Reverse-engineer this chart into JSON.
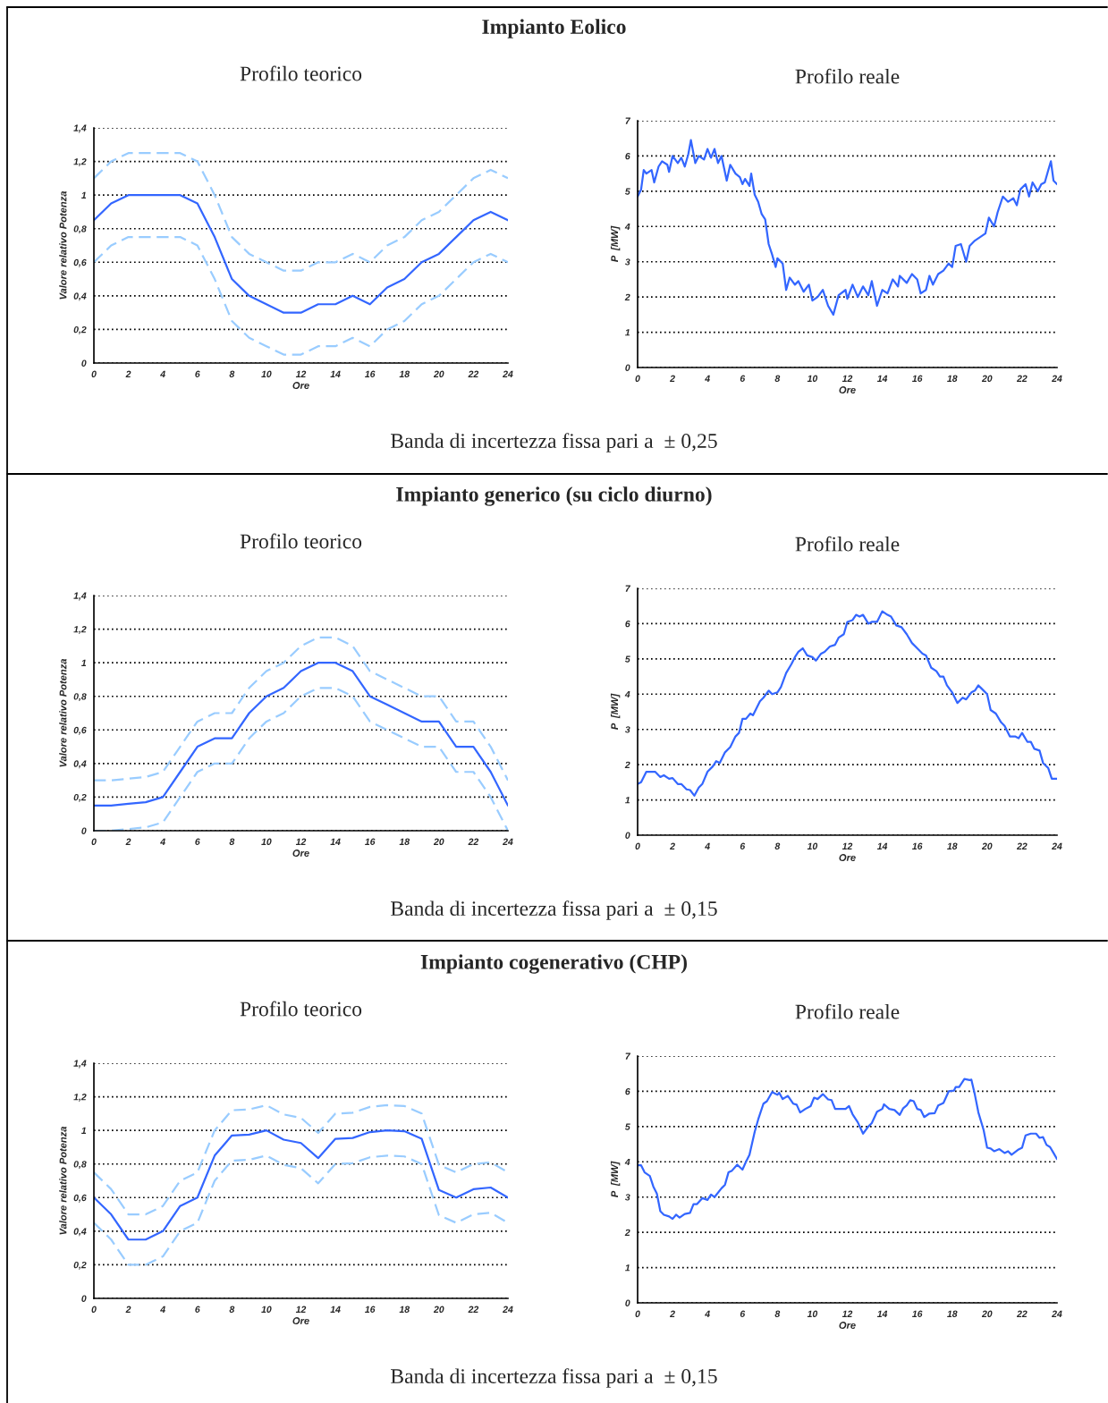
{
  "chart_data": [
    {
      "type": "line",
      "title": "Profilo teorico",
      "xlabel": "Ore",
      "ylabel": "Valore relativo Potenza",
      "annotations": [
        "Impianto Eolico",
        "Banda di incertezza fissa pari a  ± 0,25"
      ],
      "xlim": [
        0,
        24
      ],
      "ylim": [
        0,
        1.4
      ],
      "xticks": [
        0,
        2,
        4,
        6,
        8,
        10,
        12,
        14,
        16,
        18,
        20,
        22,
        24
      ],
      "yticks": [
        0,
        {
          "value": 0.2,
          "label": "0,2"
        },
        {
          "value": 0.4,
          "label": "0,4"
        },
        {
          "value": 0.6,
          "label": "0,6"
        },
        {
          "value": 0.8,
          "label": "0,8"
        },
        1,
        {
          "value": 1.2,
          "label": "1,2"
        },
        {
          "value": 1.4,
          "label": "1,4"
        }
      ],
      "grid": "y",
      "x": [
        0,
        1,
        2,
        3,
        4,
        5,
        6,
        7,
        8,
        9,
        10,
        11,
        12,
        13,
        14,
        15,
        16,
        17,
        18,
        19,
        20,
        21,
        22,
        23,
        24
      ],
      "series": [
        {
          "color": "#99ccff",
          "line_style": "dashed",
          "values": [
            1.1,
            1.2,
            1.25,
            1.25,
            1.25,
            1.25,
            1.2,
            1.0,
            0.75,
            0.65,
            0.6,
            0.55,
            0.55,
            0.6,
            0.6,
            0.65,
            0.6,
            0.7,
            0.75,
            0.85,
            0.9,
            1.0,
            1.1,
            1.15,
            1.1
          ]
        },
        {
          "color": "#99ccff",
          "line_style": "dashed",
          "values": [
            0.6,
            0.7,
            0.75,
            0.75,
            0.75,
            0.75,
            0.7,
            0.5,
            0.25,
            0.15,
            0.1,
            0.05,
            0.05,
            0.1,
            0.1,
            0.15,
            0.1,
            0.2,
            0.25,
            0.35,
            0.4,
            0.5,
            0.6,
            0.65,
            0.6
          ]
        },
        {
          "color": "#3366ff",
          "line_style": "solid",
          "values": [
            0.85,
            0.95,
            1,
            1,
            1,
            1,
            0.95,
            0.75,
            0.5,
            0.4,
            0.35,
            0.3,
            0.3,
            0.35,
            0.35,
            0.4,
            0.35,
            0.45,
            0.5,
            0.6,
            0.65,
            0.75,
            0.85,
            0.9,
            0.85
          ]
        }
      ]
    },
    {
      "type": "line",
      "title": "Profilo reale",
      "xlabel": "Ore",
      "ylabel": "P  [MW]",
      "xlim": [
        0,
        24
      ],
      "ylim": [
        0,
        7
      ],
      "xticks": [
        0,
        2,
        4,
        6,
        8,
        10,
        12,
        14,
        16,
        18,
        20,
        22,
        24
      ],
      "yticks": [
        0,
        1,
        2,
        3,
        4,
        5,
        6,
        7
      ],
      "grid": "y",
      "series": [
        {
          "color": "#3366ff",
          "line_style": "solid",
          "x": [
            0,
            0.2,
            0.35,
            0.5,
            0.8,
            0.95,
            1.2,
            1.4,
            1.7,
            1.8,
            2.0,
            2.3,
            2.5,
            2.7,
            2.9,
            3.05,
            3.3,
            3.5,
            3.8,
            4.0,
            4.2,
            4.4,
            4.6,
            4.8,
            5.1,
            5.3,
            5.6,
            5.85,
            6.0,
            6.15,
            6.4,
            6.5,
            6.7,
            6.9,
            7.1,
            7.3,
            7.5,
            7.7,
            7.9,
            8.0,
            8.3,
            8.5,
            8.7,
            9.0,
            9.2,
            9.5,
            9.8,
            10.0,
            10.3,
            10.6,
            10.9,
            11.2,
            11.5,
            11.9,
            12.0,
            12.3,
            12.6,
            12.9,
            13.2,
            13.4,
            13.7,
            14.0,
            14.3,
            14.6,
            14.9,
            15.0,
            15.4,
            15.7,
            16.0,
            16.2,
            16.5,
            16.7,
            16.9,
            17.2,
            17.5,
            17.8,
            18.0,
            18.2,
            18.5,
            18.8,
            19.0,
            19.3,
            19.6,
            19.9,
            20.1,
            20.4,
            20.6,
            20.9,
            21.2,
            21.5,
            21.7,
            21.9,
            22.2,
            22.4,
            22.6,
            22.9,
            23.1,
            23.3,
            23.5,
            23.65,
            23.8,
            24.0
          ],
          "values": [
            4.85,
            5.05,
            5.6,
            5.5,
            5.6,
            5.25,
            5.7,
            5.85,
            5.75,
            5.55,
            6.0,
            5.8,
            5.95,
            5.7,
            6.05,
            6.45,
            5.8,
            6.0,
            5.9,
            6.2,
            5.95,
            6.2,
            5.8,
            6.0,
            5.3,
            5.75,
            5.5,
            5.4,
            5.2,
            5.35,
            5.15,
            5.5,
            4.9,
            4.7,
            4.35,
            4.2,
            3.5,
            3.2,
            2.85,
            3.1,
            2.95,
            2.2,
            2.55,
            2.35,
            2.45,
            2.15,
            2.35,
            1.9,
            2.0,
            2.2,
            1.75,
            1.5,
            2.05,
            2.2,
            1.95,
            2.35,
            2.0,
            2.3,
            2.05,
            2.45,
            1.75,
            2.2,
            2.1,
            2.5,
            2.3,
            2.6,
            2.4,
            2.65,
            2.5,
            2.1,
            2.2,
            2.6,
            2.35,
            2.65,
            2.75,
            2.95,
            2.85,
            3.45,
            3.5,
            3.0,
            3.45,
            3.6,
            3.7,
            3.8,
            4.25,
            4.0,
            4.4,
            4.85,
            4.7,
            4.8,
            4.6,
            5.05,
            5.2,
            4.85,
            5.25,
            5.0,
            5.2,
            5.25,
            5.6,
            5.85,
            5.3,
            5.2
          ]
        }
      ]
    },
    {
      "type": "line",
      "title": "Profilo teorico",
      "xlabel": "Ore",
      "ylabel": "Valore relativo Potenza",
      "annotations": [
        "Impianto generico (su ciclo diurno)",
        "Banda di incertezza fissa pari a  ± 0,15"
      ],
      "xlim": [
        0,
        24
      ],
      "ylim": [
        0,
        1.4
      ],
      "xticks": [
        0,
        2,
        4,
        6,
        8,
        10,
        12,
        14,
        16,
        18,
        20,
        22,
        24
      ],
      "yticks": [
        0,
        {
          "value": 0.2,
          "label": "0,2"
        },
        {
          "value": 0.4,
          "label": "0,4"
        },
        {
          "value": 0.6,
          "label": "0,6"
        },
        {
          "value": 0.8,
          "label": "0,8"
        },
        1,
        {
          "value": 1.2,
          "label": "1,2"
        },
        {
          "value": 1.4,
          "label": "1,4"
        }
      ],
      "grid": "y",
      "x": [
        0,
        1,
        2,
        3,
        4,
        5,
        6,
        7,
        8,
        9,
        10,
        11,
        12,
        13,
        14,
        15,
        16,
        17,
        18,
        19,
        20,
        21,
        22,
        23,
        24
      ],
      "series": [
        {
          "color": "#99ccff",
          "line_style": "dashed",
          "values": [
            0.3,
            0.3,
            0.31,
            0.32,
            0.35,
            0.5,
            0.65,
            0.7,
            0.7,
            0.85,
            0.95,
            1.0,
            1.1,
            1.15,
            1.15,
            1.1,
            0.95,
            0.9,
            0.85,
            0.8,
            0.8,
            0.65,
            0.65,
            0.5,
            0.3
          ]
        },
        {
          "color": "#99ccff",
          "line_style": "dashed",
          "values": [
            0,
            0,
            0.01,
            0.02,
            0.05,
            0.2,
            0.35,
            0.4,
            0.4,
            0.55,
            0.65,
            0.7,
            0.8,
            0.85,
            0.85,
            0.8,
            0.65,
            0.6,
            0.55,
            0.5,
            0.5,
            0.35,
            0.35,
            0.2,
            0
          ]
        },
        {
          "color": "#3366ff",
          "line_style": "solid",
          "values": [
            0.15,
            0.15,
            0.16,
            0.17,
            0.2,
            0.35,
            0.5,
            0.55,
            0.55,
            0.7,
            0.8,
            0.85,
            0.95,
            1,
            1,
            0.95,
            0.8,
            0.75,
            0.7,
            0.65,
            0.65,
            0.5,
            0.5,
            0.35,
            0.15
          ]
        }
      ]
    },
    {
      "type": "line",
      "title": "Profilo reale",
      "xlabel": "Ore",
      "ylabel": "P  [MW]",
      "xlim": [
        0,
        24
      ],
      "ylim": [
        0,
        7
      ],
      "xticks": [
        0,
        2,
        4,
        6,
        8,
        10,
        12,
        14,
        16,
        18,
        20,
        22,
        24
      ],
      "yticks": [
        0,
        1,
        2,
        3,
        4,
        5,
        6,
        7
      ],
      "grid": "y",
      "series": [
        {
          "color": "#3366ff",
          "line_style": "solid",
          "x": [
            0,
            0.2,
            0.5,
            1.0,
            1.3,
            1.5,
            1.8,
            2.0,
            2.3,
            2.5,
            2.8,
            3.0,
            3.25,
            3.5,
            3.7,
            4.0,
            4.3,
            4.5,
            4.7,
            5.0,
            5.3,
            5.6,
            5.8,
            6.0,
            6.2,
            6.45,
            6.6,
            7.0,
            7.2,
            7.5,
            7.7,
            8.0,
            8.2,
            8.5,
            8.8,
            9.0,
            9.2,
            9.45,
            9.7,
            10.0,
            10.2,
            10.5,
            10.7,
            11.0,
            11.3,
            11.5,
            11.8,
            12.0,
            12.3,
            12.5,
            12.7,
            12.9,
            13.2,
            13.4,
            13.7,
            14.0,
            14.3,
            14.5,
            14.8,
            15.1,
            15.4,
            15.7,
            16.0,
            16.3,
            16.5,
            16.8,
            17.1,
            17.3,
            17.5,
            17.7,
            18.0,
            18.3,
            18.6,
            18.8,
            19.1,
            19.3,
            19.5,
            19.7,
            20.0,
            20.2,
            20.5,
            20.8,
            21.0,
            21.3,
            21.6,
            21.8,
            22.0,
            22.3,
            22.5,
            22.7,
            23.0,
            23.2,
            23.5,
            23.7,
            24.0
          ],
          "values": [
            1.45,
            1.5,
            1.8,
            1.8,
            1.65,
            1.7,
            1.6,
            1.62,
            1.45,
            1.45,
            1.3,
            1.28,
            1.12,
            1.35,
            1.45,
            1.8,
            1.95,
            2.1,
            2.05,
            2.35,
            2.5,
            2.8,
            2.9,
            3.3,
            3.3,
            3.45,
            3.4,
            3.8,
            3.9,
            4.1,
            4.0,
            4.05,
            4.2,
            4.6,
            4.85,
            5.05,
            5.2,
            5.3,
            5.1,
            5.05,
            4.95,
            5.15,
            5.2,
            5.35,
            5.4,
            5.6,
            5.7,
            6.05,
            6.1,
            6.25,
            6.2,
            6.25,
            6.0,
            6.05,
            6.05,
            6.35,
            6.25,
            6.2,
            5.95,
            5.9,
            5.7,
            5.45,
            5.3,
            5.15,
            5.1,
            4.75,
            4.65,
            4.5,
            4.5,
            4.25,
            4.05,
            3.75,
            3.9,
            3.85,
            4.05,
            4.1,
            4.25,
            4.15,
            4.0,
            3.55,
            3.45,
            3.2,
            3.1,
            2.8,
            2.8,
            2.75,
            2.9,
            2.65,
            2.65,
            2.45,
            2.4,
            2.05,
            1.9,
            1.6,
            1.6
          ]
        }
      ]
    },
    {
      "type": "line",
      "title": "Profilo teorico",
      "xlabel": "Ore",
      "ylabel": "Valore relativo Potenza",
      "annotations": [
        "Impianto cogenerativo (CHP)",
        "Banda di incertezza fissa pari a  ± 0,15"
      ],
      "xlim": [
        0,
        24
      ],
      "ylim": [
        0,
        1.4
      ],
      "xticks": [
        0,
        2,
        4,
        6,
        8,
        10,
        12,
        14,
        16,
        18,
        20,
        22,
        24
      ],
      "yticks": [
        0,
        {
          "value": 0.2,
          "label": "0,2"
        },
        {
          "value": 0.4,
          "label": "0,4"
        },
        {
          "value": 0.6,
          "label": "0,6"
        },
        {
          "value": 0.8,
          "label": "0,8"
        },
        1,
        {
          "value": 1.2,
          "label": "1,2"
        },
        {
          "value": 1.4,
          "label": "1,4"
        }
      ],
      "grid": "y",
      "x": [
        0,
        1,
        2,
        3,
        4,
        5,
        6,
        7,
        8,
        9,
        10,
        11,
        12,
        13,
        14,
        15,
        16,
        17,
        18,
        19,
        20,
        21,
        22,
        23,
        24
      ],
      "series": [
        {
          "color": "#99ccff",
          "line_style": "dashed",
          "values": [
            0.75,
            0.65,
            0.5,
            0.5,
            0.55,
            0.7,
            0.75,
            1.0,
            1.12,
            1.125,
            1.15,
            1.095,
            1.075,
            0.985,
            1.1,
            1.105,
            1.14,
            1.15,
            1.145,
            1.1,
            0.795,
            0.75,
            0.8,
            0.81,
            0.75
          ]
        },
        {
          "color": "#99ccff",
          "line_style": "dashed",
          "values": [
            0.45,
            0.35,
            0.2,
            0.2,
            0.25,
            0.4,
            0.45,
            0.7,
            0.82,
            0.825,
            0.85,
            0.795,
            0.775,
            0.685,
            0.8,
            0.805,
            0.84,
            0.85,
            0.845,
            0.8,
            0.495,
            0.45,
            0.5,
            0.51,
            0.45
          ]
        },
        {
          "color": "#3366ff",
          "line_style": "solid",
          "values": [
            0.6,
            0.5,
            0.35,
            0.35,
            0.4,
            0.55,
            0.6,
            0.85,
            0.97,
            0.975,
            1,
            0.945,
            0.925,
            0.835,
            0.95,
            0.955,
            0.99,
            1,
            0.995,
            0.95,
            0.645,
            0.6,
            0.65,
            0.66,
            0.6
          ]
        }
      ]
    },
    {
      "type": "line",
      "title": "Profilo reale",
      "xlabel": "Ore",
      "ylabel": "P  [MW]",
      "xlim": [
        0,
        24
      ],
      "ylim": [
        0,
        7
      ],
      "xticks": [
        0,
        2,
        4,
        6,
        8,
        10,
        12,
        14,
        16,
        18,
        20,
        22,
        24
      ],
      "yticks": [
        0,
        1,
        2,
        3,
        4,
        5,
        6,
        7
      ],
      "grid": "y",
      "series": [
        {
          "color": "#3366ff",
          "line_style": "solid",
          "x": [
            0,
            0.2,
            0.4,
            0.7,
            0.9,
            1.1,
            1.3,
            1.5,
            1.8,
            2.0,
            2.2,
            2.4,
            2.7,
            3.0,
            3.2,
            3.4,
            3.7,
            4.0,
            4.2,
            4.4,
            4.8,
            5.0,
            5.2,
            5.4,
            5.7,
            6.0,
            6.2,
            6.4,
            6.7,
            6.9,
            7.2,
            7.4,
            7.7,
            8.0,
            8.1,
            8.3,
            8.6,
            8.9,
            9.1,
            9.3,
            9.6,
            9.9,
            10.1,
            10.3,
            10.6,
            10.9,
            11.1,
            11.3,
            11.6,
            11.9,
            12.1,
            12.3,
            12.6,
            12.9,
            13.2,
            13.4,
            13.7,
            14.0,
            14.1,
            14.4,
            14.7,
            15.0,
            15.2,
            15.4,
            15.6,
            15.8,
            16.0,
            16.2,
            16.4,
            16.7,
            17.0,
            17.2,
            17.5,
            17.8,
            18.1,
            18.2,
            18.4,
            18.7,
            19.0,
            19.1,
            19.3,
            19.5,
            19.8,
            20.0,
            20.2,
            20.4,
            20.7,
            21.0,
            21.2,
            21.4,
            21.8,
            22.0,
            22.2,
            22.5,
            22.8,
            23.0,
            23.2,
            23.4,
            23.6,
            23.8,
            24.0
          ],
          "values": [
            3.9,
            3.9,
            3.7,
            3.6,
            3.3,
            3.1,
            2.6,
            2.5,
            2.45,
            2.38,
            2.5,
            2.42,
            2.52,
            2.55,
            2.8,
            2.8,
            2.97,
            2.92,
            3.07,
            3.0,
            3.25,
            3.35,
            3.7,
            3.75,
            3.92,
            3.78,
            4.0,
            4.2,
            4.85,
            5.2,
            5.65,
            5.72,
            5.98,
            5.9,
            5.96,
            5.78,
            5.87,
            5.65,
            5.62,
            5.4,
            5.5,
            5.58,
            5.82,
            5.78,
            5.92,
            5.77,
            5.75,
            5.5,
            5.5,
            5.5,
            5.58,
            5.35,
            5.12,
            4.8,
            5.0,
            5.1,
            5.42,
            5.5,
            5.63,
            5.5,
            5.47,
            5.33,
            5.52,
            5.6,
            5.75,
            5.72,
            5.5,
            5.47,
            5.27,
            5.37,
            5.38,
            5.6,
            5.67,
            6.0,
            6.02,
            6.12,
            6.12,
            6.35,
            6.32,
            6.33,
            5.9,
            5.4,
            4.9,
            4.4,
            4.38,
            4.3,
            4.36,
            4.25,
            4.3,
            4.2,
            4.35,
            4.4,
            4.75,
            4.8,
            4.8,
            4.68,
            4.7,
            4.48,
            4.42,
            4.25,
            4.08
          ]
        }
      ]
    }
  ]
}
